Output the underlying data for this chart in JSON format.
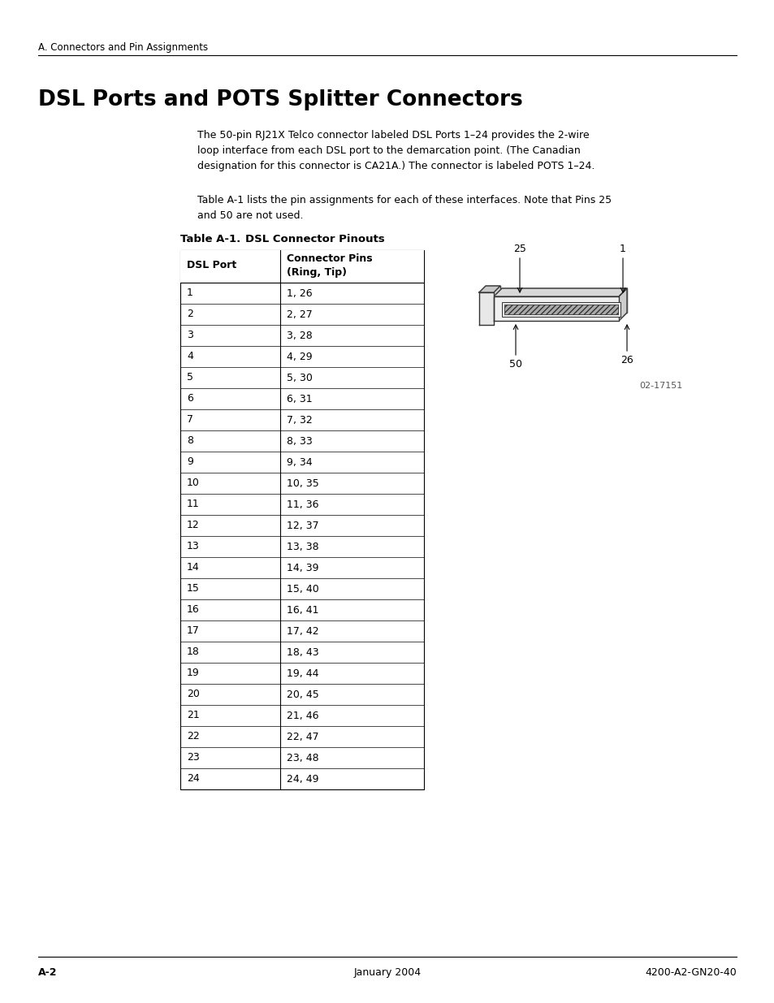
{
  "page_header": "A. Connectors and Pin Assignments",
  "title": "DSL Ports and POTS Splitter Connectors",
  "body_text_1": "The 50-pin RJ21X Telco connector labeled DSL Ports 1–24 provides the 2-wire\nloop interface from each DSL port to the demarcation point. (The Canadian\ndesignation for this connector is CA21A.) The connector is labeled POTS 1–24.",
  "body_text_2": "Table A-1 lists the pin assignments for each of these interfaces. Note that Pins 25\nand 50 are not used.",
  "table_caption": "Table A-1.    DSL Connector Pinouts",
  "table_header_col1": "DSL Port",
  "table_header_col2": "Connector Pins\n(Ring, Tip)",
  "table_rows": [
    [
      "1",
      "1, 26"
    ],
    [
      "2",
      "2, 27"
    ],
    [
      "3",
      "3, 28"
    ],
    [
      "4",
      "4, 29"
    ],
    [
      "5",
      "5, 30"
    ],
    [
      "6",
      "6, 31"
    ],
    [
      "7",
      "7, 32"
    ],
    [
      "8",
      "8, 33"
    ],
    [
      "9",
      "9, 34"
    ],
    [
      "10",
      "10, 35"
    ],
    [
      "11",
      "11, 36"
    ],
    [
      "12",
      "12, 37"
    ],
    [
      "13",
      "13, 38"
    ],
    [
      "14",
      "14, 39"
    ],
    [
      "15",
      "15, 40"
    ],
    [
      "16",
      "16, 41"
    ],
    [
      "17",
      "17, 42"
    ],
    [
      "18",
      "18, 43"
    ],
    [
      "19",
      "19, 44"
    ],
    [
      "20",
      "20, 45"
    ],
    [
      "21",
      "21, 46"
    ],
    [
      "22",
      "22, 47"
    ],
    [
      "23",
      "23, 48"
    ],
    [
      "24",
      "24, 49"
    ]
  ],
  "footer_left": "A-2",
  "footer_center": "January 2004",
  "footer_right": "4200-A2-GN20-40",
  "bg_color": "#ffffff",
  "text_color": "#000000",
  "image_caption": "02-17151"
}
